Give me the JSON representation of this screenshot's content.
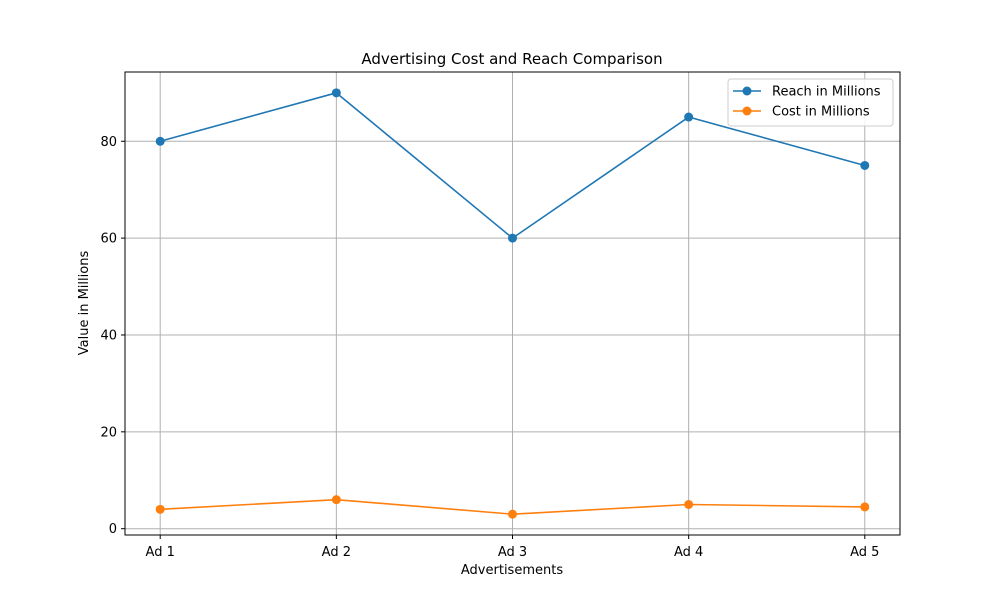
{
  "chart_data": {
    "type": "line",
    "title": "Advertising Cost and Reach Comparison",
    "xlabel": "Advertisements",
    "ylabel": "Value in Millions",
    "categories": [
      "Ad 1",
      "Ad 2",
      "Ad 3",
      "Ad 4",
      "Ad 5"
    ],
    "ylim": [
      -1.3,
      94.3
    ],
    "yticks": [
      0,
      20,
      40,
      60,
      80
    ],
    "grid": true,
    "legend_position": "top-right",
    "series": [
      {
        "name": "Reach in Millions",
        "color": "#1f77b4",
        "marker": "circle",
        "values": [
          80,
          90,
          60,
          85,
          75
        ]
      },
      {
        "name": "Cost in Millions",
        "color": "#ff7f0e",
        "marker": "circle",
        "values": [
          4,
          6,
          3,
          5,
          4.5
        ]
      }
    ]
  }
}
